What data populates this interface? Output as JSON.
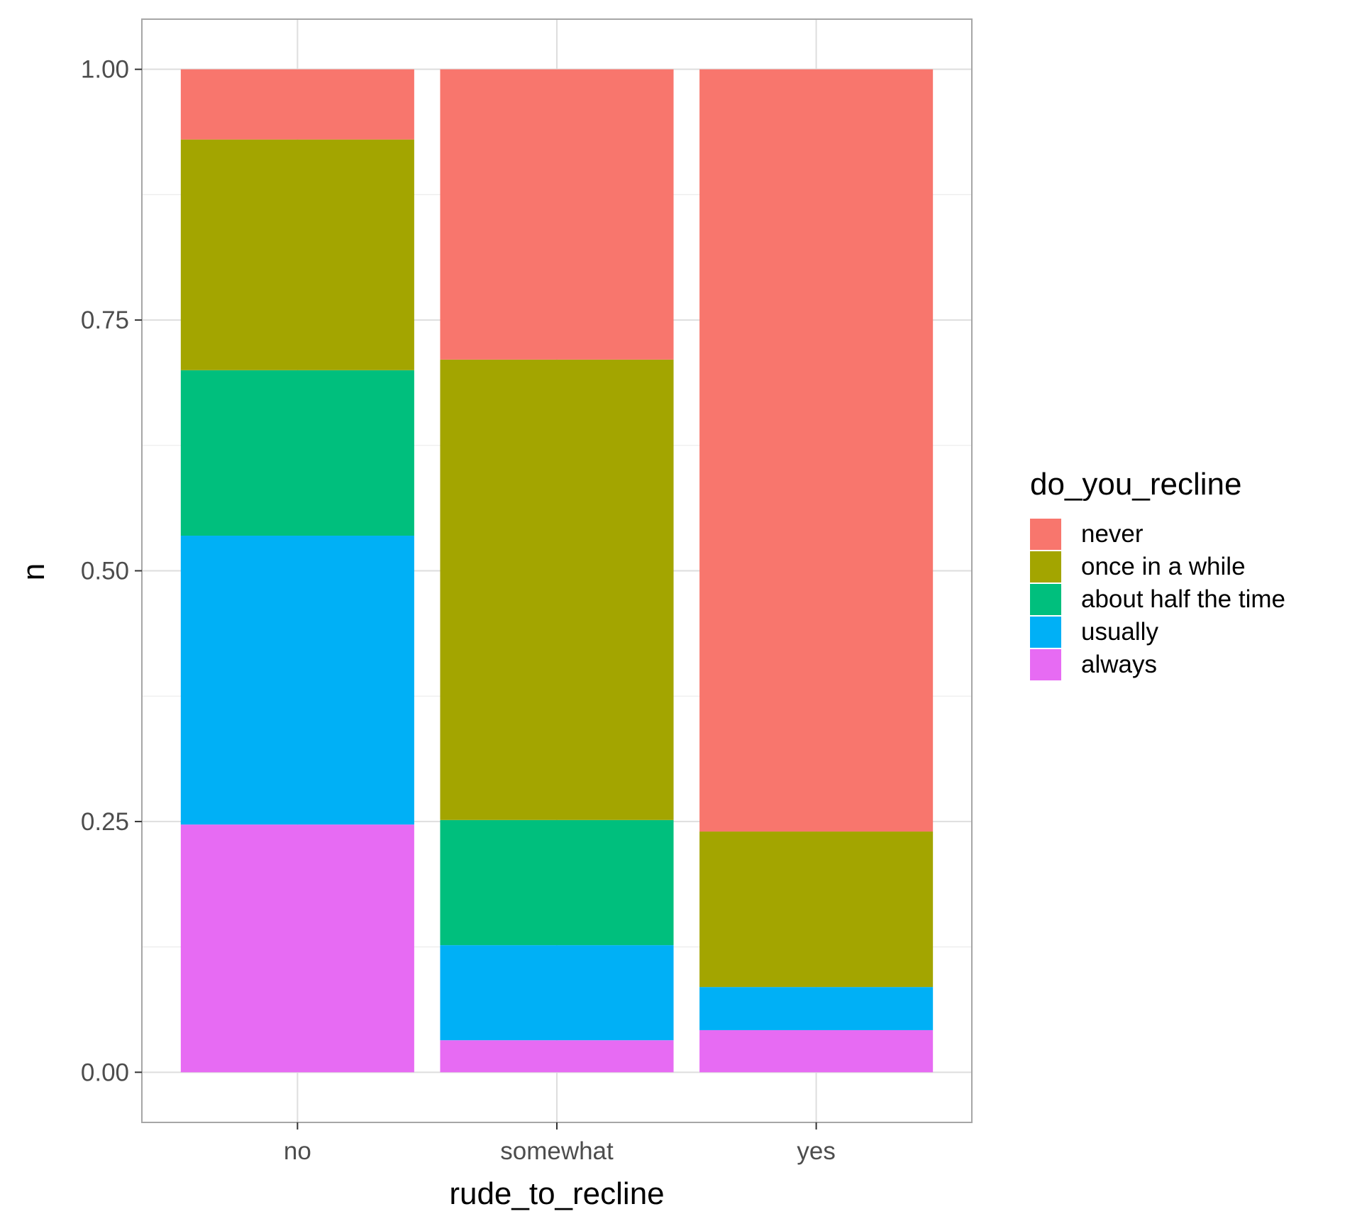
{
  "chart_data": {
    "type": "bar",
    "stacked": "fill",
    "xlabel": "rude_to_recline",
    "ylabel": "n",
    "ylim": [
      -0.05,
      1.05
    ],
    "yticks": [
      0.0,
      0.25,
      0.5,
      0.75,
      1.0
    ],
    "ytick_labels": [
      "0.00",
      "0.25",
      "0.50",
      "0.75",
      "1.00"
    ],
    "categories": [
      "no",
      "somewhat",
      "yes"
    ],
    "grid": true,
    "legend": {
      "title": "do_you_recline",
      "position": "right"
    },
    "series": [
      {
        "name": "never",
        "color": "#F8766D",
        "values": [
          0.07,
          0.29,
          0.76
        ]
      },
      {
        "name": "once in a while",
        "color": "#A3A500",
        "values": [
          0.23,
          0.46,
          0.155
        ]
      },
      {
        "name": "about half the time",
        "color": "#00BF7D",
        "values": [
          0.165,
          0.125,
          0.0
        ]
      },
      {
        "name": "usually",
        "color": "#00B0F6",
        "values": [
          0.288,
          0.095,
          0.043
        ]
      },
      {
        "name": "always",
        "color": "#E76BF3",
        "values": [
          0.247,
          0.032,
          0.042
        ]
      }
    ]
  }
}
